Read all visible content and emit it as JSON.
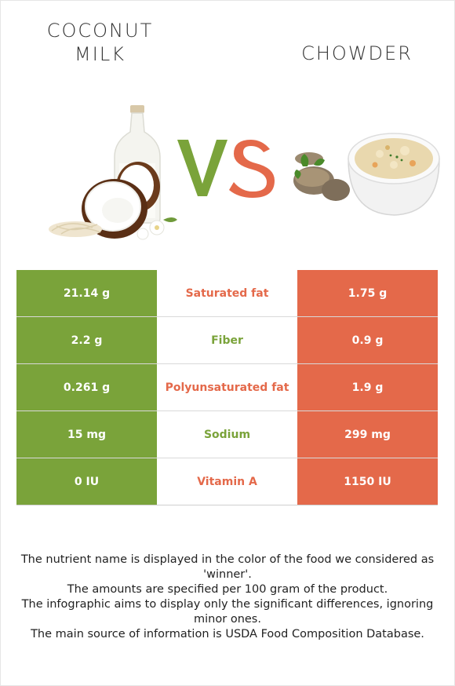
{
  "header": {
    "left_title_line1": "COCONUT",
    "left_title_line2": "MILK",
    "right_title": "CHOWDER",
    "vs_text": "VS"
  },
  "colors": {
    "winner_left": "#7aa33a",
    "winner_right": "#e4694a"
  },
  "rows": [
    {
      "left": "21.14 g",
      "nutrient": "Saturated fat",
      "right": "1.75 g",
      "winner": "right"
    },
    {
      "left": "2.2 g",
      "nutrient": "Fiber",
      "right": "0.9 g",
      "winner": "left"
    },
    {
      "left": "0.261 g",
      "nutrient": "Polyunsaturated fat",
      "right": "1.9 g",
      "winner": "right"
    },
    {
      "left": "15 mg",
      "nutrient": "Sodium",
      "right": "299 mg",
      "winner": "left"
    },
    {
      "left": "0 IU",
      "nutrient": "Vitamin A",
      "right": "1150 IU",
      "winner": "right"
    }
  ],
  "notes": [
    "The nutrient name is displayed in the color of the food we considered as 'winner'.",
    "The amounts are specified per 100 gram of the product.",
    "The infographic aims to display only the significant differences, ignoring minor ones.",
    "The main source of information is USDA Food Composition Database."
  ]
}
